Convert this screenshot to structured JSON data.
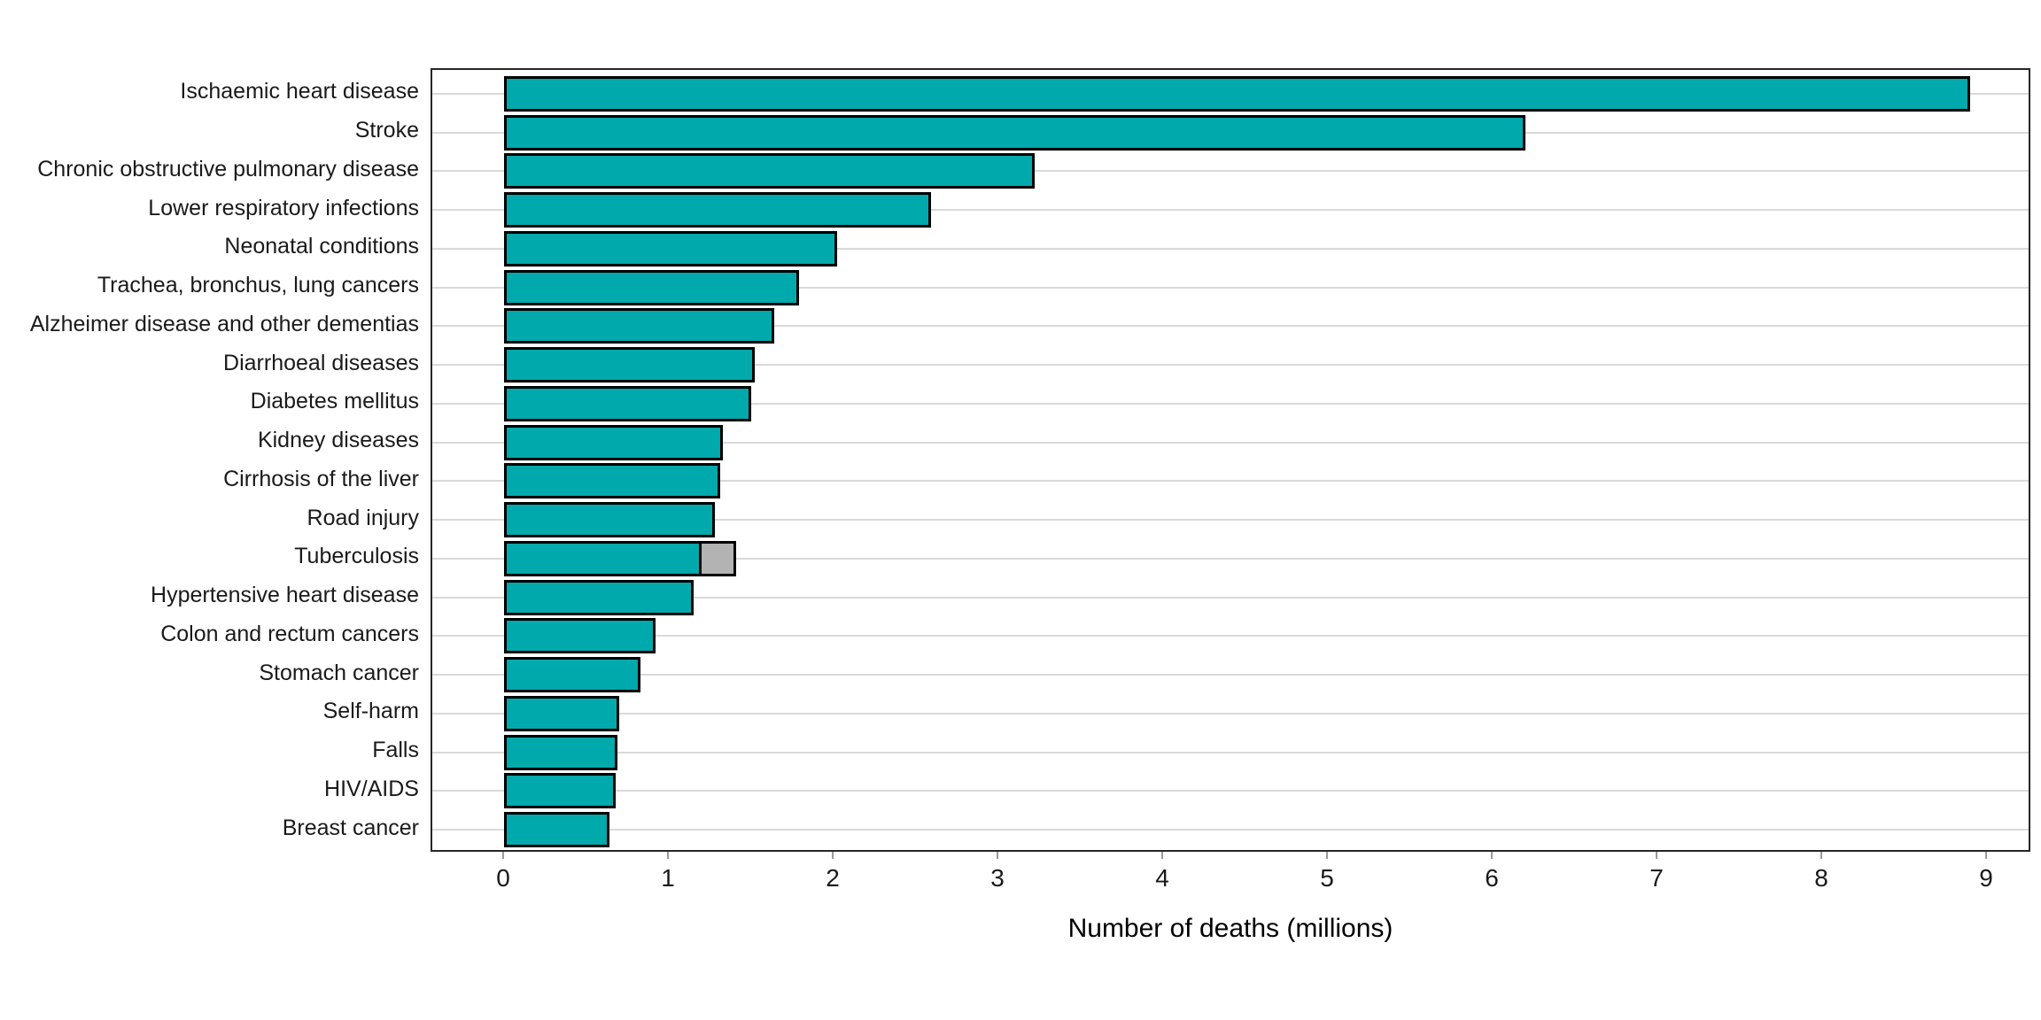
{
  "chart_data": {
    "type": "bar",
    "orientation": "horizontal",
    "title": "",
    "xlabel": "Number of deaths (millions)",
    "ylabel": "",
    "xlim": [
      0,
      9.3
    ],
    "xticks": [
      0,
      1,
      2,
      3,
      4,
      5,
      6,
      7,
      8,
      9
    ],
    "grid": "horizontal light gridlines at each category center, no vertical gridlines",
    "legend": "none",
    "categories": [
      "Ischaemic heart disease",
      "Stroke",
      "Chronic obstructive pulmonary disease",
      "Lower respiratory infections",
      "Neonatal conditions",
      "Trachea, bronchus, lung cancers",
      "Alzheimer disease and other dementias",
      "Diarrhoeal diseases",
      "Diabetes mellitus",
      "Kidney diseases",
      "Cirrhosis of the liver",
      "Road injury",
      "Tuberculosis",
      "Hypertensive heart disease",
      "Colon and rectum cancers",
      "Stomach cancer",
      "Self-harm",
      "Falls",
      "HIV/AIDS",
      "Breast cancer"
    ],
    "series": [
      {
        "name": "deaths-teal-segment",
        "color": "#00a9ac",
        "values": [
          8.9,
          6.2,
          3.22,
          2.59,
          2.02,
          1.79,
          1.64,
          1.52,
          1.5,
          1.33,
          1.31,
          1.28,
          1.2,
          1.15,
          0.92,
          0.83,
          0.7,
          0.69,
          0.68,
          0.64
        ]
      },
      {
        "name": "deaths-gray-extra-segment",
        "color": "#b3b3b3",
        "values": [
          0,
          0,
          0,
          0,
          0,
          0,
          0,
          0,
          0,
          0,
          0,
          0,
          0.21,
          0,
          0,
          0,
          0,
          0,
          0,
          0
        ]
      }
    ]
  },
  "palette": {
    "bar_fill": "#00a9ac",
    "bar_extra_fill": "#b3b3b3",
    "bar_stroke": "#000000",
    "panel_border": "#262626",
    "gridline": "#d9d9d9",
    "tick_mark": "#9a9a9a",
    "text": "#1a1a1a",
    "background": "#ffffff"
  }
}
